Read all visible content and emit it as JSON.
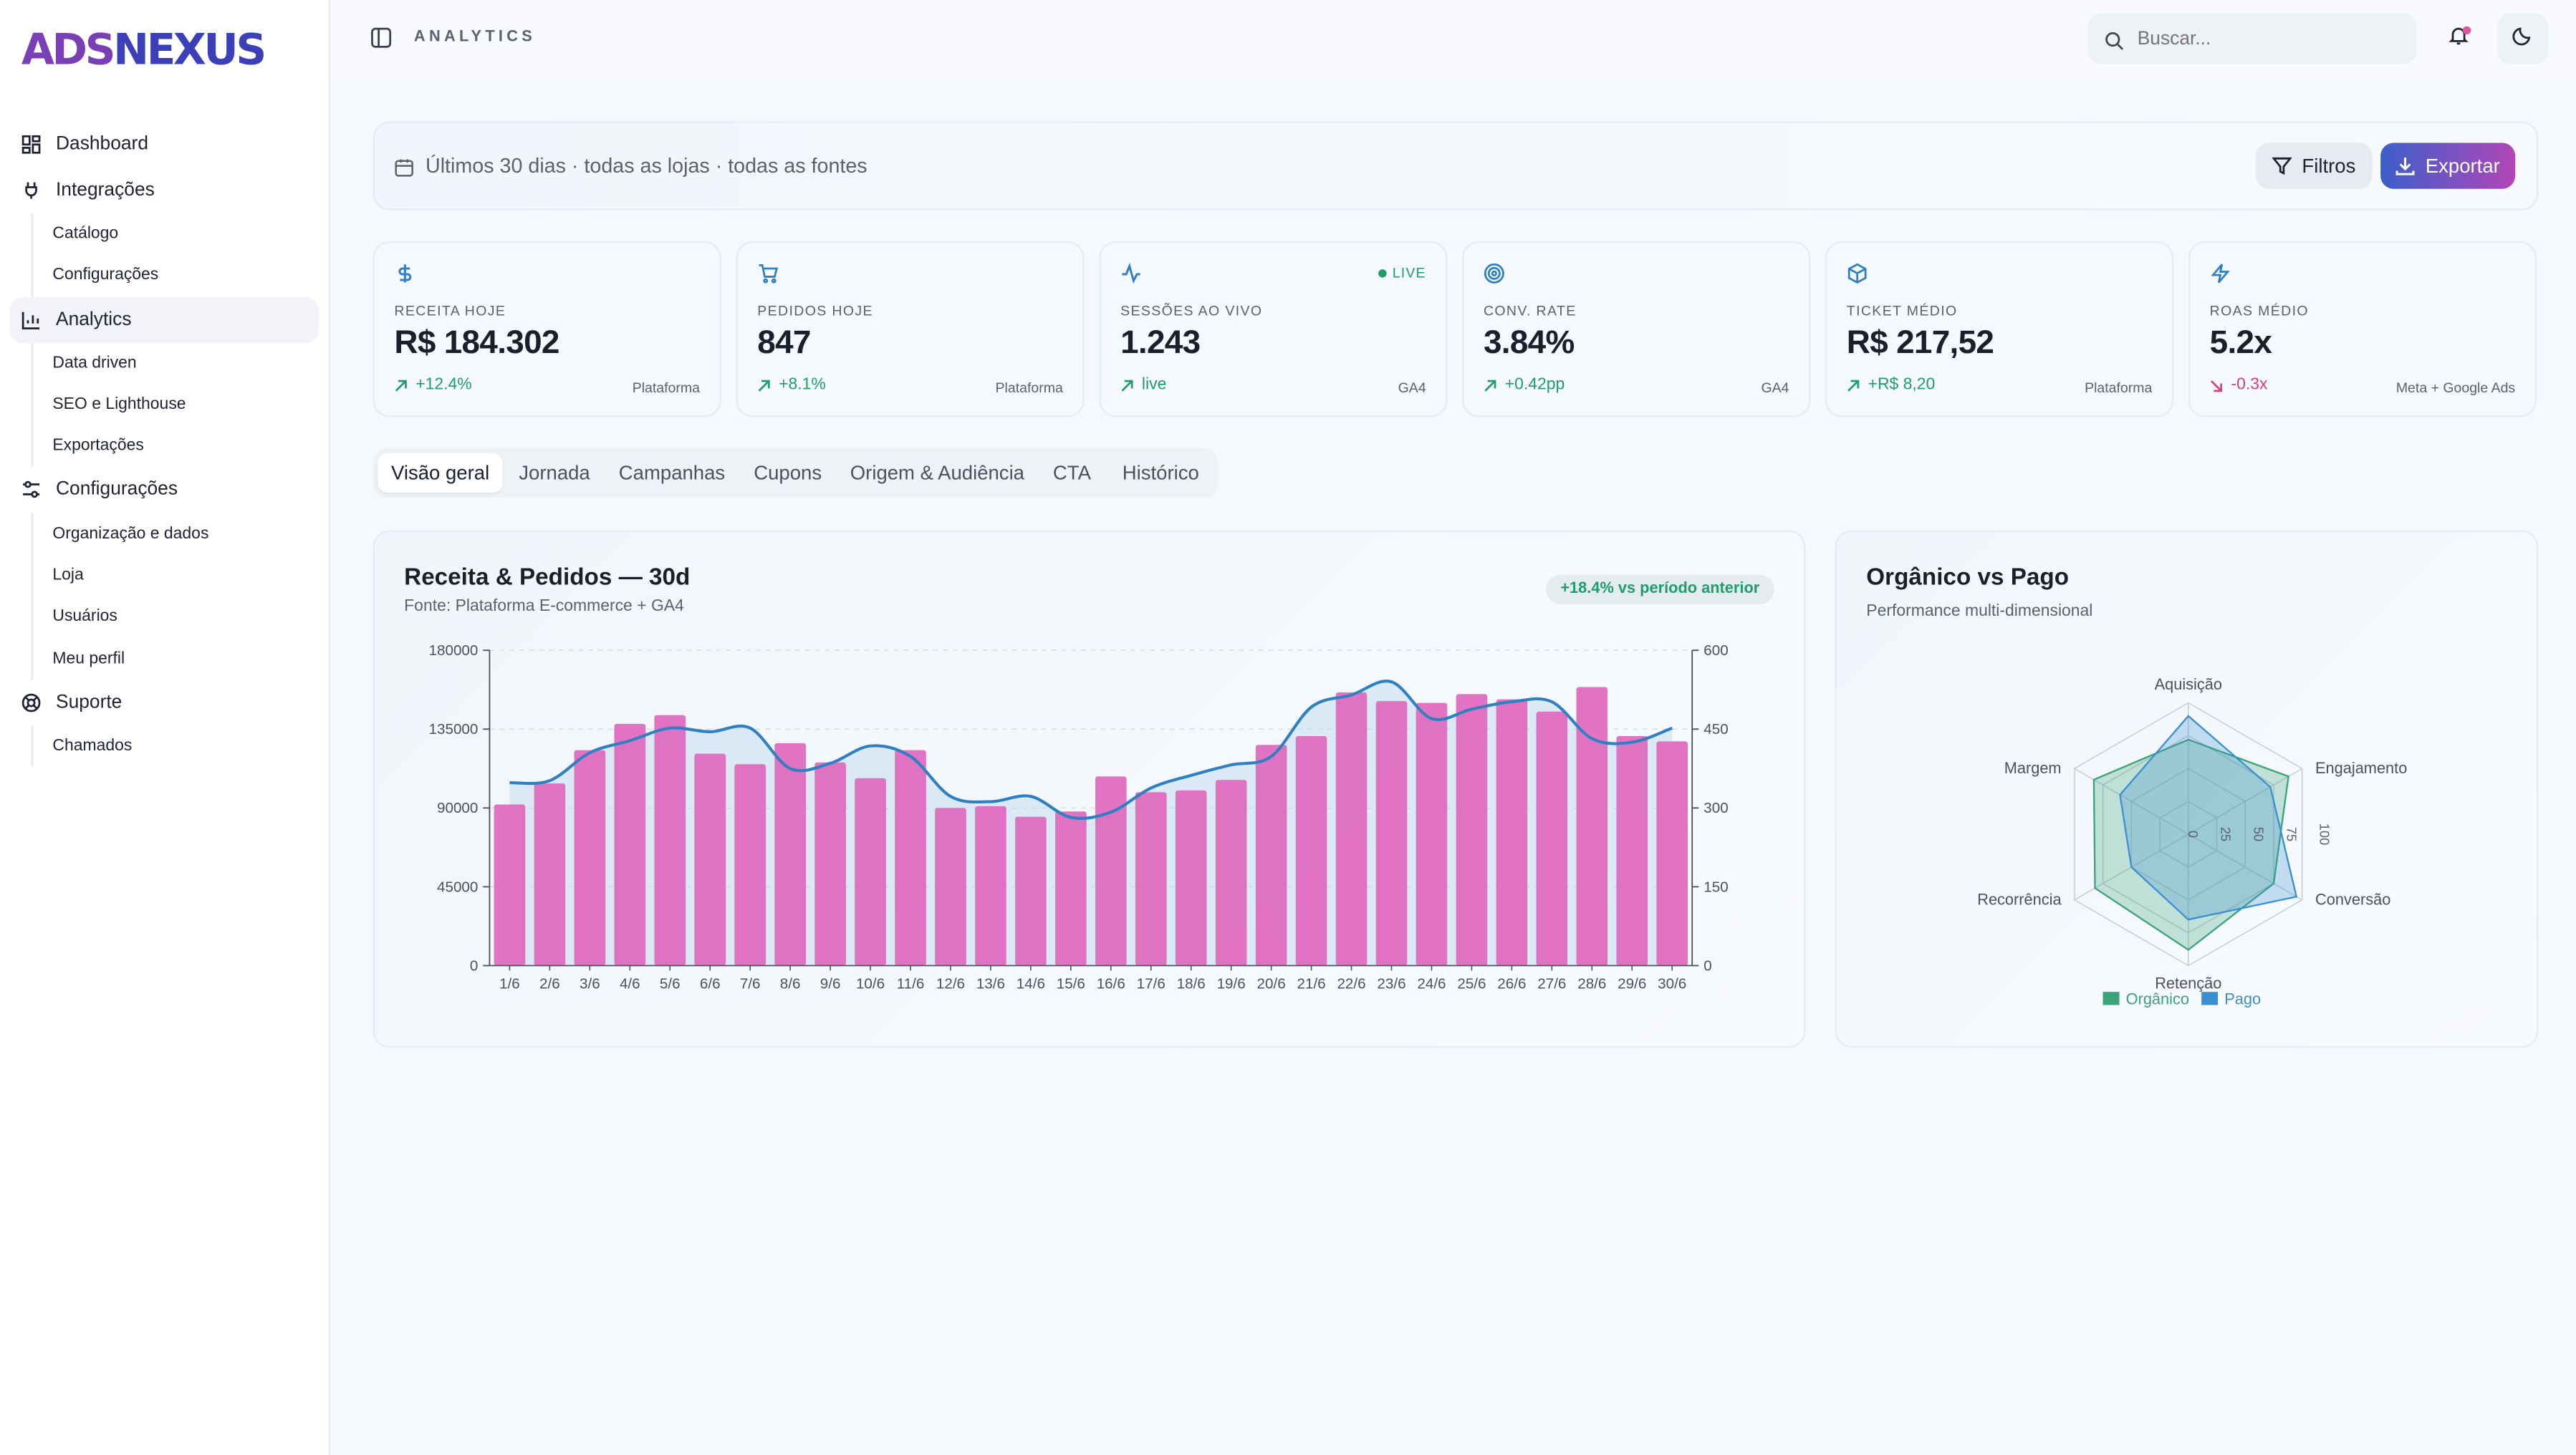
{
  "brand": {
    "part1": "ADS",
    "part2": "NEXUS"
  },
  "sidebar": {
    "items": [
      {
        "label": "Dashboard",
        "icon": "dashboard-icon"
      },
      {
        "label": "Integrações",
        "icon": "plug-icon",
        "children": [
          "Catálogo",
          "Configurações"
        ]
      },
      {
        "label": "Analytics",
        "icon": "bar-chart-icon",
        "active": true,
        "children": [
          "Data driven",
          "SEO e Lighthouse",
          "Exportações"
        ]
      },
      {
        "label": "Configurações",
        "icon": "sliders-icon",
        "children": [
          "Organização e dados",
          "Loja",
          "Usuários",
          "Meu perfil"
        ]
      },
      {
        "label": "Suporte",
        "icon": "lifebuoy-icon",
        "children": [
          "Chamados"
        ]
      }
    ]
  },
  "header": {
    "title": "ANALYTICS",
    "search_placeholder": "Buscar..."
  },
  "filterbar": {
    "text": "Últimos 30 dias · todas as lojas · todas as fontes",
    "filter_label": "Filtros",
    "export_label": "Exportar"
  },
  "kpis": [
    {
      "label": "RECEITA HOJE",
      "value": "R$ 184.302",
      "change": "+12.4%",
      "trend": "up",
      "source": "Plataforma",
      "icon": "dollar-icon"
    },
    {
      "label": "PEDIDOS HOJE",
      "value": "847",
      "change": "+8.1%",
      "trend": "up",
      "source": "Plataforma",
      "icon": "cart-icon"
    },
    {
      "label": "SESSÕES AO VIVO",
      "value": "1.243",
      "change": "live",
      "trend": "up",
      "source": "GA4",
      "icon": "activity-icon",
      "live": "LIVE"
    },
    {
      "label": "CONV. RATE",
      "value": "3.84%",
      "change": "+0.42pp",
      "trend": "up",
      "source": "GA4",
      "icon": "target-icon"
    },
    {
      "label": "TICKET MÉDIO",
      "value": "R$ 217,52",
      "change": "+R$ 8,20",
      "trend": "up",
      "source": "Plataforma",
      "icon": "box-icon"
    },
    {
      "label": "ROAS MÉDIO",
      "value": "5.2x",
      "change": "-0.3x",
      "trend": "down",
      "source": "Meta + Google Ads",
      "icon": "zap-icon"
    }
  ],
  "tabs": [
    "Visão geral",
    "Jornada",
    "Campanhas",
    "Cupons",
    "Origem & Audiência",
    "CTA",
    "Histórico"
  ],
  "colors": {
    "accent": "#3b5fc9",
    "bar": "#e06bbf",
    "line": "#2f80c3",
    "organic": "#3aa377",
    "paid": "#3a8fd0",
    "up": "#1f9d6a",
    "down": "#d6407e"
  },
  "revenue_card": {
    "title": "Receita & Pedidos — 30d",
    "subtitle": "Fonte: Plataforma E-commerce + GA4",
    "badge": "+18.4% vs período anterior"
  },
  "radar_card": {
    "title": "Orgânico vs Pago",
    "subtitle": "Performance multi-dimensional"
  },
  "chart_data": [
    {
      "type": "bar",
      "title": "Receita & Pedidos — 30d",
      "categories": [
        "1/6",
        "2/6",
        "3/6",
        "4/6",
        "5/6",
        "6/6",
        "7/6",
        "8/6",
        "9/6",
        "10/6",
        "11/6",
        "12/6",
        "13/6",
        "14/6",
        "15/6",
        "16/6",
        "17/6",
        "18/6",
        "19/6",
        "20/6",
        "21/6",
        "22/6",
        "23/6",
        "24/6",
        "25/6",
        "26/6",
        "27/6",
        "28/6",
        "29/6",
        "30/6"
      ],
      "y_left": {
        "ticks": [
          0,
          45000,
          90000,
          135000,
          180000
        ],
        "ylim": [
          0,
          180000
        ]
      },
      "y_right": {
        "ticks": [
          0,
          150,
          300,
          450,
          600
        ],
        "ylim": [
          0,
          600
        ]
      },
      "series": [
        {
          "kind": "bar",
          "axis": "left",
          "values": [
            92000,
            104000,
            123000,
            138000,
            143000,
            121000,
            115000,
            127000,
            116000,
            107000,
            123000,
            90000,
            91000,
            85000,
            88000,
            108000,
            99000,
            100000,
            106000,
            126000,
            131000,
            156000,
            151000,
            150000,
            155000,
            152000,
            145000,
            159000,
            131000,
            128000
          ]
        },
        {
          "kind": "line",
          "axis": "right",
          "values": [
            348,
            352,
            405,
            428,
            452,
            445,
            452,
            375,
            385,
            418,
            398,
            322,
            312,
            322,
            282,
            292,
            338,
            362,
            382,
            398,
            492,
            515,
            540,
            470,
            488,
            502,
            502,
            432,
            425,
            452
          ]
        }
      ]
    },
    {
      "type": "radar",
      "title": "Orgânico vs Pago",
      "axes": [
        "Aquisição",
        "Engajamento",
        "Conversão",
        "Retenção",
        "Recorrência",
        "Margem"
      ],
      "rlim": [
        0,
        100
      ],
      "ticks": [
        0,
        25,
        50,
        75,
        100
      ],
      "series": [
        {
          "name": "Orgânico",
          "values": [
            72,
            88,
            75,
            88,
            82,
            83
          ]
        },
        {
          "name": "Pago",
          "values": [
            90,
            72,
            95,
            65,
            50,
            60
          ]
        }
      ]
    }
  ]
}
